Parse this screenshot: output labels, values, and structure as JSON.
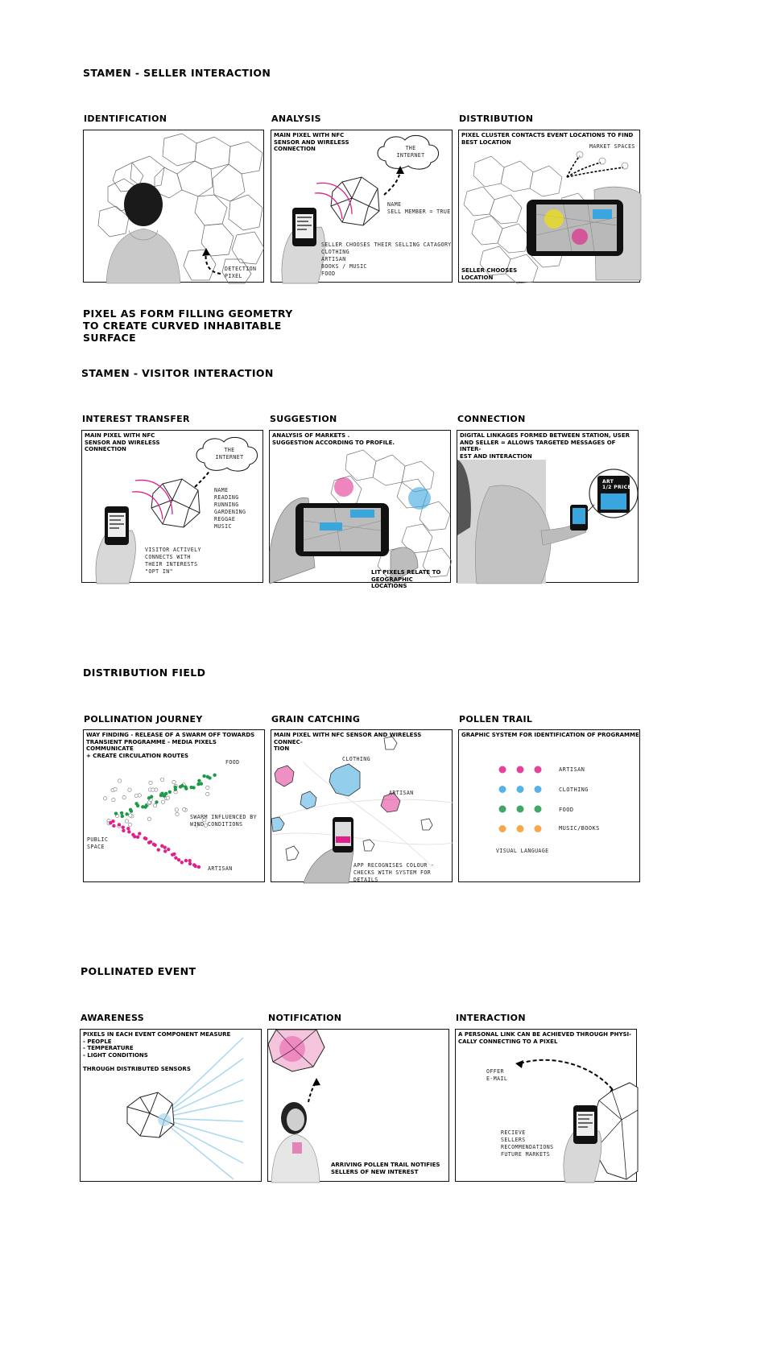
{
  "sections": [
    {
      "title": "STAMEN - SELLER INTERACTION",
      "panels": [
        {
          "title": "IDENTIFICATION",
          "caption": "",
          "notes": [
            "DETECTION\nPIXEL"
          ]
        },
        {
          "title": "ANALYSIS",
          "caption": "MAIN PIXEL WITH NFC\nSENSOR AND WIRELESS\nCONNECTION",
          "cloud": "THE\nINTERNET",
          "notes": [
            "NAME\nSELL MEMBER = TRUE",
            "SELLER CHOOSES THEIR SELLING CATAGORY\nCLOTHING\nARTISAN\nBOOKS / MUSIC\nFOOD"
          ]
        },
        {
          "title": "DISTRIBUTION",
          "caption": "PIXEL CLUSTER CONTACTS EVENT LOCATIONS TO FIND\nBEST LOCATION",
          "notes": [
            "MARKET SPACES"
          ],
          "bottom": "SELLER CHOOSES\nLOCATION"
        }
      ]
    },
    {
      "title": "STAMEN - VISITOR INTERACTION",
      "panels": [
        {
          "title": "INTEREST TRANSFER",
          "caption": "MAIN PIXEL WITH NFC\nSENSOR AND WIRELESS\nCONNECTION",
          "cloud": "THE\nINTERNET",
          "notes": [
            "NAME\nREADING\nRUNNING\nGARDENING\nREGGAE\nMUSIC",
            "VISITOR ACTIVELY\nCONNECTS WITH\nTHEIR INTERESTS\n\"OPT IN\""
          ]
        },
        {
          "title": "SUGGESTION",
          "caption": "ANALYSIS OF MARKETS .\nSUGGESTION ACCORDING TO PROFILE.",
          "notes": [],
          "bottom": "LIT PIXELS RELATE TO\nGEOGRAPHIC LOCATIONS"
        },
        {
          "title": "CONNECTION",
          "caption": "DIGITAL LINKAGES FORMED BETWEEN STATION, USER\nAND SELLER = ALLOWS TARGETED MESSAGES OF INTER-\nEST AND INTERACTION",
          "notes": [
            "ART\n1/2 PRICE"
          ]
        }
      ]
    },
    {
      "title": "DISTRIBUTION FIELD",
      "panels": [
        {
          "title": "POLLINATION JOURNEY",
          "caption": "WAY FINDING - RELEASE OF A SWARM OFF TOWARDS\nTRANSIENT PROGRAMME - MEDIA PIXELS COMMUNICATE\n+  CREATE CIRCULATION ROUTES",
          "notes": [
            "FOOD",
            "SWARM INFLUENCED BY\nWIND CONDITIONS",
            "PUBLIC\nSPACE",
            "ARTISAN"
          ]
        },
        {
          "title": "GRAIN CATCHING",
          "caption": "MAIN PIXEL WITH NFC SENSOR AND WIRELESS CONNEC-\nTION",
          "notes": [
            "CLOTHING",
            "ARTISAN",
            "APP RECOGNISES COLOUR -\nCHECKS WITH SYSTEM FOR\nDETAILS"
          ]
        },
        {
          "title": "POLLEN TRAIL",
          "caption": "GRAPHIC SYSTEM FOR IDENTIFICATION OF PROGRAMME",
          "legend": [
            "ARTISAN",
            "CLOTHING",
            "FOOD",
            "MUSIC/BOOKS"
          ],
          "footer": "VISUAL LANGUAGE"
        }
      ]
    },
    {
      "title": "POLLINATED EVENT",
      "panels": [
        {
          "title": "AWARENESS",
          "caption": "PIXELS IN EACH EVENT COMPONENT MEASURE\n- PEOPLE\n- TEMPERATURE\n- LIGHT CONDITIONS\n\nTHROUGH DISTRIBUTED SENSORS"
        },
        {
          "title": "NOTIFICATION",
          "caption": "",
          "bottom": "ARRIVING POLLEN TRAIL NOTIFIES\nSELLERS OF NEW INTEREST"
        },
        {
          "title": "INTERACTION",
          "caption": "A PERSONAL LINK CAN BE ACHIEVED THROUGH PHYSI-\nCALLY CONNECTING TO A PIXEL",
          "notes": [
            "OFFER\nE-MAIL",
            "RECIEVE\nSELLERS\nRECOMMENDATIONS\nFUTURE MARKETS"
          ]
        }
      ]
    }
  ],
  "pixel_geometry_heading": "PIXEL AS FORM FILLING GEOMETRY\nTO CREATE CURVED INHABITABLE\nSURFACE",
  "colors": {
    "artisan": "#e0218a",
    "clothing": "#3aa6df",
    "food": "#1c9a4a",
    "music_books": "#f39a2b",
    "sensor_rays": "#a8d8ef"
  }
}
